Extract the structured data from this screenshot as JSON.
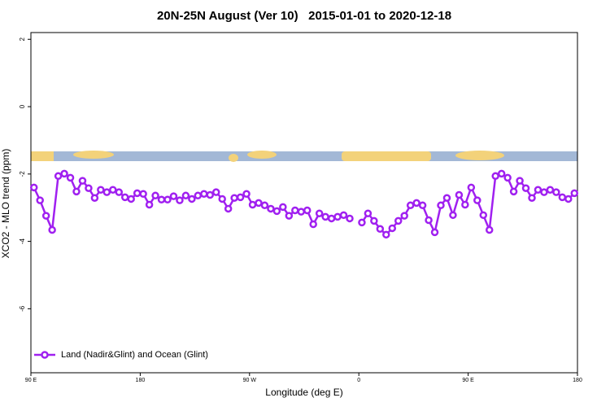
{
  "chart_data": {
    "type": "line",
    "title": "20N-25N August (Ver 10)   2015-01-01 to 2020-12-18",
    "xlabel": "Longitude (deg E)",
    "ylabel": "XCO2 - MLO trend (ppm)",
    "xlim": [
      90,
      540
    ],
    "ylim": [
      -7.9,
      2.2
    ],
    "xticks": [
      {
        "value": 90,
        "label": "90 E"
      },
      180,
      {
        "value": 270,
        "label": "90 W"
      },
      {
        "value": 360,
        "label": "0"
      },
      {
        "value": 450,
        "label": "90 E"
      },
      {
        "value": 540,
        "label": "180"
      }
    ],
    "yticks": [
      -6,
      -4,
      -2,
      0,
      2
    ],
    "legend": "bottom left",
    "x": [
      92.5,
      97.5,
      102.5,
      107.5,
      112.5,
      117.5,
      122.5,
      127.5,
      132.5,
      137.5,
      142.5,
      147.5,
      152.5,
      157.5,
      162.5,
      167.5,
      172.5,
      177.5,
      182.5,
      187.5,
      192.5,
      197.5,
      202.5,
      207.5,
      212.5,
      217.5,
      222.5,
      227.5,
      232.5,
      237.5,
      242.5,
      247.5,
      252.5,
      257.5,
      262.5,
      267.5,
      272.5,
      277.5,
      282.5,
      287.5,
      292.5,
      297.5,
      302.5,
      307.5,
      312.5,
      317.5,
      322.5,
      327.5,
      332.5,
      337.5,
      342.5,
      347.5,
      352.5,
      357.5,
      362.5,
      367.5,
      372.5,
      377.5,
      382.5,
      387.5,
      392.5,
      397.5,
      402.5,
      407.5,
      412.5,
      417.5,
      422.5,
      427.5,
      432.5,
      437.5,
      442.5,
      447.5,
      452.5,
      457.5,
      462.5,
      467.5,
      472.5,
      477.5,
      482.5,
      487.5,
      492.5,
      497.5,
      502.5,
      507.5,
      512.5,
      517.5,
      522.5,
      527.5,
      532.5,
      537.5
    ],
    "series": [
      {
        "name": "Land (Nadir&Glint) and Ocean (Glint)",
        "color": "#a020f0",
        "values": [
          -2.4,
          -2.78,
          -3.24,
          -3.66,
          -2.06,
          -1.99,
          -2.11,
          -2.52,
          -2.2,
          -2.42,
          -2.71,
          -2.47,
          -2.54,
          -2.47,
          -2.54,
          -2.69,
          -2.74,
          -2.57,
          -2.59,
          -2.91,
          -2.64,
          -2.76,
          -2.76,
          -2.66,
          -2.78,
          -2.64,
          -2.74,
          -2.64,
          -2.59,
          -2.62,
          -2.54,
          -2.74,
          -3.03,
          -2.71,
          -2.69,
          -2.59,
          -2.91,
          -2.86,
          -2.93,
          -3.03,
          -3.1,
          -2.98,
          -3.24,
          -3.08,
          -3.12,
          -3.08,
          -3.49,
          -3.17,
          -3.27,
          -3.32,
          -3.27,
          -3.22,
          -3.32,
          null,
          -3.44,
          -3.17,
          -3.39,
          -3.63,
          -3.8,
          -3.61,
          -3.39,
          -3.24,
          -2.93,
          -2.86,
          -2.93,
          -3.37,
          -3.73,
          -2.93,
          -2.71,
          -3.22,
          -2.62,
          -2.91,
          -2.4,
          -2.78,
          -3.22,
          -3.66,
          -2.06,
          -1.99,
          -2.11,
          -2.52,
          -2.2,
          -2.42,
          -2.71,
          -2.47,
          -2.54,
          -2.47,
          -2.54,
          -2.69,
          -2.74,
          -2.57
        ]
      }
    ]
  }
}
